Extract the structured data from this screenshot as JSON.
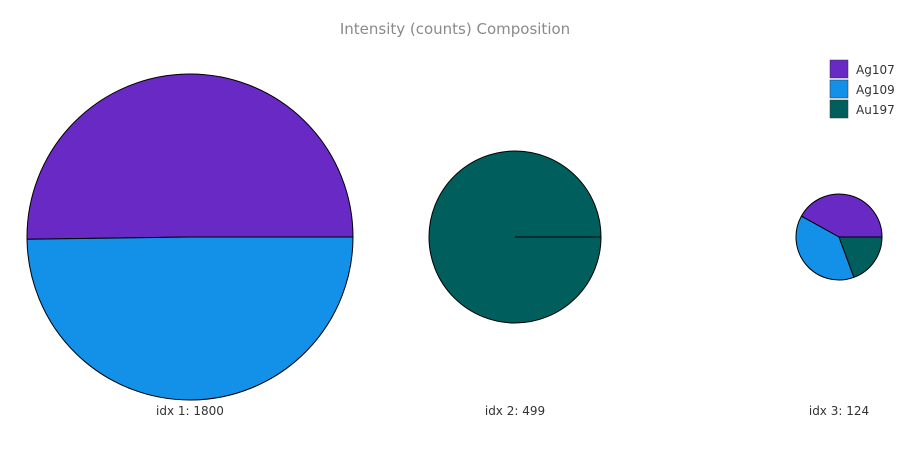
{
  "chart_data": {
    "type": "pie",
    "title": "Intensity (counts) Composition",
    "legend": {
      "placement": "top-right",
      "entries": [
        {
          "name": "Ag107",
          "color": "#6829c5"
        },
        {
          "name": "Ag109",
          "color": "#1390e8"
        },
        {
          "name": "Au197",
          "color": "#005e5c"
        }
      ]
    },
    "pies": [
      {
        "label": "idx 1: 1800",
        "total": 1800,
        "slices": [
          {
            "name": "Ag107",
            "value": 904
          },
          {
            "name": "Ag109",
            "value": 896
          },
          {
            "name": "Au197",
            "value": 0
          }
        ]
      },
      {
        "label": "idx 2: 499",
        "total": 499,
        "slices": [
          {
            "name": "Ag107",
            "value": 0
          },
          {
            "name": "Ag109",
            "value": 0
          },
          {
            "name": "Au197",
            "value": 499
          }
        ]
      },
      {
        "label": "idx 3: 124",
        "total": 124,
        "slices": [
          {
            "name": "Ag107",
            "value": 52
          },
          {
            "name": "Ag109",
            "value": 48
          },
          {
            "name": "Au197",
            "value": 24
          }
        ]
      }
    ]
  }
}
